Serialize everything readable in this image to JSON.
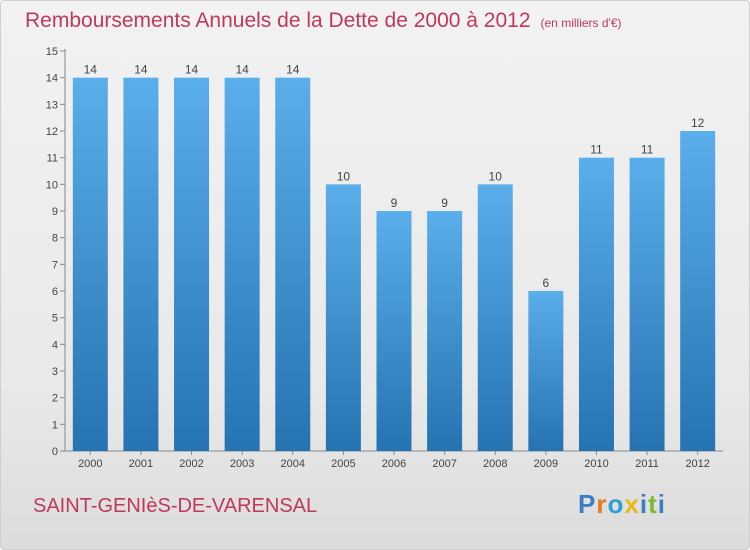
{
  "header": {
    "title": "Remboursements Annuels de la Dette de 2000 à 2012",
    "unit": "(en milliers d'€)"
  },
  "footer": {
    "city": "SAINT-GENIèS-DE-VARENSAL",
    "brand": "Proxiti"
  },
  "colors": {
    "title": "#c0395a",
    "bar_top": "#5aaeea",
    "bar_bottom": "#2673b2",
    "brand_letters": [
      "#3a7fc2",
      "#e8791f",
      "#2e9fd6",
      "#e8b818",
      "#3a7fc2",
      "#7cb92e",
      "#3a7fc2"
    ]
  },
  "chart_data": {
    "type": "bar",
    "categories": [
      "2000",
      "2001",
      "2002",
      "2003",
      "2004",
      "2005",
      "2006",
      "2007",
      "2008",
      "2009",
      "2010",
      "2011",
      "2012"
    ],
    "values": [
      14,
      14,
      14,
      14,
      14,
      10,
      9,
      9,
      10,
      6,
      11,
      11,
      12
    ],
    "ylim": [
      0,
      15
    ],
    "yticks": [
      0,
      1,
      2,
      3,
      4,
      5,
      6,
      7,
      8,
      9,
      10,
      11,
      12,
      13,
      14,
      15
    ],
    "grid": false,
    "xlabel": "",
    "ylabel": ""
  }
}
